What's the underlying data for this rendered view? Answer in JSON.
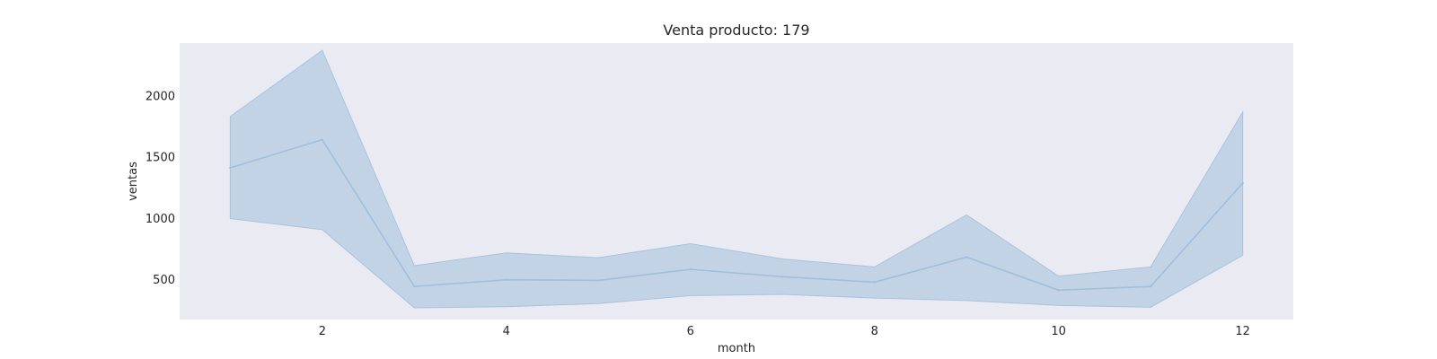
{
  "chart_data": {
    "type": "line",
    "title": "Venta producto: 179",
    "xlabel": "month",
    "ylabel": "ventas",
    "xlim": [
      0.45,
      12.55
    ],
    "ylim": [
      170,
      2430
    ],
    "xticks": [
      2,
      4,
      6,
      8,
      10,
      12
    ],
    "yticks": [
      500,
      1000,
      1500,
      2000
    ],
    "grid": false,
    "colors": {
      "plot_bg": "#eaeaf2",
      "line": "#9fbfdc",
      "band": "#c3d3e6",
      "band_edge": "#a9c3de"
    },
    "series": [
      {
        "x": [
          1,
          2,
          3,
          4,
          5,
          6,
          7,
          8,
          9,
          10,
          11,
          12
        ],
        "values": [
          1410,
          1640,
          440,
          495,
          490,
          580,
          520,
          475,
          680,
          410,
          440,
          1285
        ],
        "ci_lower": [
          995,
          905,
          265,
          275,
          300,
          365,
          375,
          345,
          325,
          285,
          270,
          695
        ],
        "ci_upper": [
          1830,
          2370,
          610,
          715,
          675,
          790,
          665,
          600,
          1025,
          525,
          600,
          1865
        ]
      }
    ]
  }
}
